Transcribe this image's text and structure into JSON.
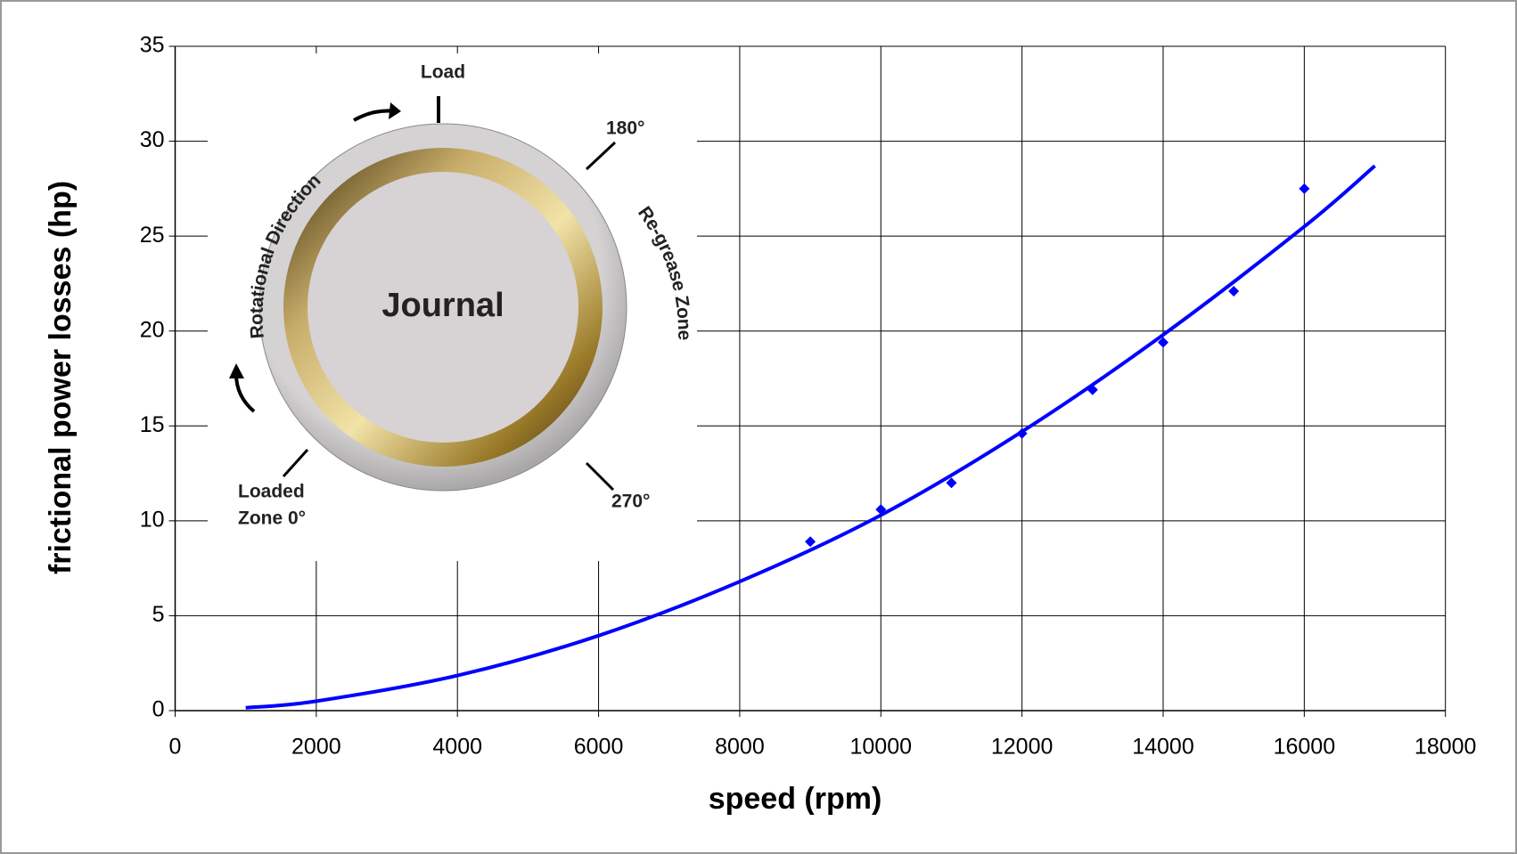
{
  "chart_data": {
    "type": "scatter",
    "x_label": "speed (rpm)",
    "y_label": "frictional power losses (hp)",
    "xlim": [
      0,
      18000
    ],
    "xticks": [
      0,
      2000,
      4000,
      6000,
      8000,
      10000,
      12000,
      14000,
      16000,
      18000
    ],
    "ylim": [
      0,
      35
    ],
    "yticks": [
      0,
      5,
      10,
      15,
      20,
      25,
      30,
      35
    ],
    "grid": true,
    "series": [
      {
        "kind": "points",
        "color": "#0000ff",
        "x": [
          9000,
          10000,
          11000,
          12000,
          13000,
          14000,
          15000,
          16000
        ],
        "values": [
          8.9,
          10.6,
          12.0,
          14.6,
          16.9,
          19.4,
          22.1,
          27.5
        ]
      },
      {
        "kind": "line",
        "color": "#0000ff",
        "x": [
          1000,
          2000,
          4000,
          6000,
          8000,
          10000,
          12000,
          14000,
          16000,
          17000
        ],
        "values": [
          0.15,
          0.5,
          1.85,
          3.95,
          6.8,
          10.3,
          14.7,
          19.8,
          25.5,
          28.7
        ]
      }
    ],
    "inset": {
      "center": "Journal",
      "load": "Load",
      "angle_180": "180°",
      "angle_270": "270°",
      "regrease": "Re-grease Zone",
      "rotation": "Rotational Direction",
      "loaded_1": "Loaded",
      "loaded_2": "Zone 0°"
    }
  }
}
